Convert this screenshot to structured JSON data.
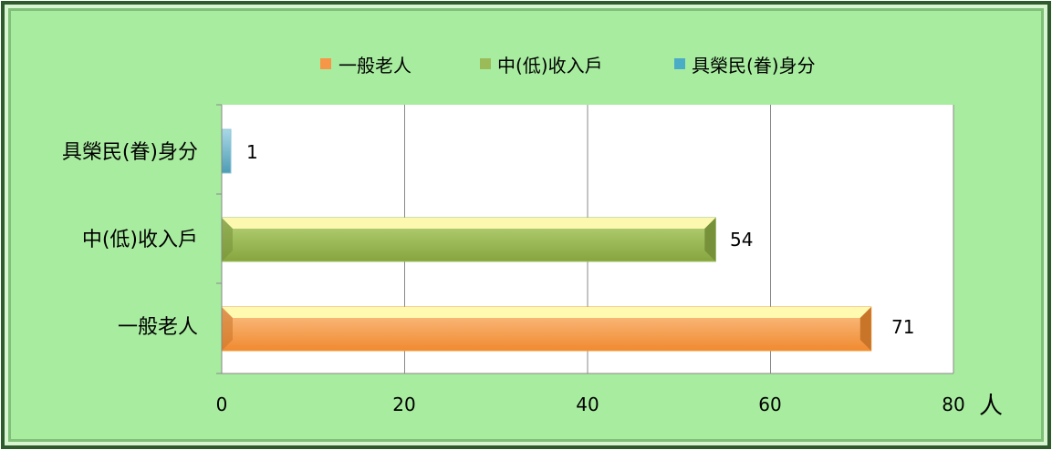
{
  "chart_data": {
    "type": "bar",
    "orientation": "horizontal",
    "style": "3d",
    "categories": [
      "一般老人",
      "中(低)收入戶",
      "具榮民(眷)身分"
    ],
    "values": [
      71,
      54,
      1
    ],
    "series": [
      {
        "name": "一般老人",
        "values": [
          71,
          null,
          null
        ],
        "color": "#F79646"
      },
      {
        "name": "中(低)收入戶",
        "values": [
          null,
          54,
          null
        ],
        "color": "#9BBB59"
      },
      {
        "name": "具榮民(眷)身分",
        "values": [
          null,
          null,
          1
        ],
        "color": "#4BACC6"
      }
    ],
    "data_labels": [
      "71",
      "54",
      "1"
    ],
    "x_ticks": [
      "0",
      "20",
      "40",
      "60",
      "80"
    ],
    "xlim": [
      0,
      80
    ],
    "unit_label": "人",
    "grid": true,
    "legend_position": "top"
  },
  "colors": {
    "background": "#A8ECA0",
    "frame_dark": "#2E5A2E",
    "plot_background": "#FFFFFF",
    "gridline": "#888888"
  }
}
